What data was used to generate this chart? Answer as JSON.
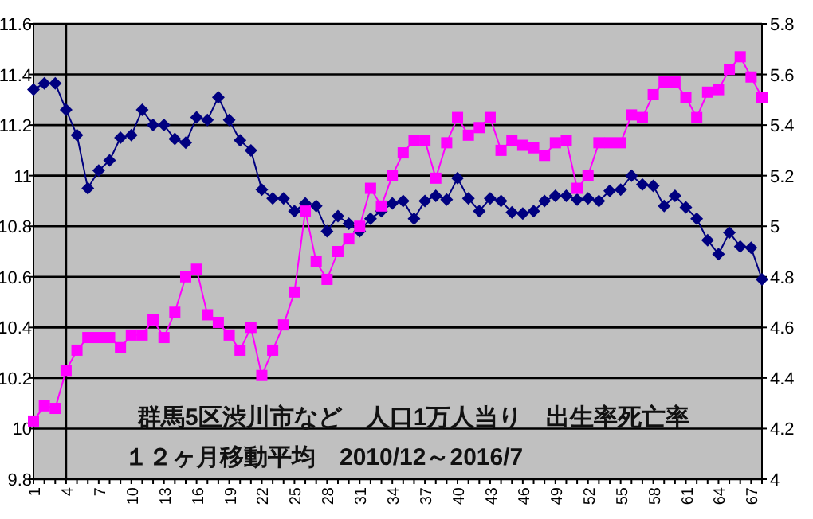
{
  "chart_data": {
    "type": "line",
    "categories": [
      "1",
      null,
      null,
      "4",
      null,
      null,
      "7",
      null,
      null,
      "10",
      null,
      null,
      "13",
      null,
      null,
      "16",
      null,
      null,
      "19",
      null,
      null,
      "22",
      null,
      null,
      "25",
      null,
      null,
      "28",
      null,
      null,
      "31",
      null,
      null,
      "34",
      null,
      null,
      "37",
      null,
      null,
      "40",
      null,
      null,
      "43",
      null,
      null,
      "46",
      null,
      null,
      "49",
      null,
      null,
      "52",
      null,
      null,
      "55",
      null,
      null,
      "58",
      null,
      null,
      "61",
      null,
      null,
      "64",
      null,
      null,
      "67",
      null
    ],
    "series": [
      {
        "color": "#000080",
        "marker": "diamond",
        "axis": "y",
        "values": [
          11.34,
          11.365,
          11.365,
          11.26,
          11.16,
          10.95,
          11.02,
          11.06,
          11.15,
          11.16,
          11.26,
          11.2,
          11.2,
          11.145,
          11.13,
          11.23,
          11.22,
          11.31,
          11.22,
          11.14,
          11.1,
          10.945,
          10.91,
          10.91,
          10.86,
          10.89,
          10.88,
          10.78,
          10.84,
          10.81,
          10.78,
          10.83,
          10.86,
          10.89,
          10.9,
          10.83,
          10.9,
          10.92,
          10.905,
          10.99,
          10.91,
          10.86,
          10.91,
          10.9,
          10.855,
          10.85,
          10.86,
          10.9,
          10.92,
          10.92,
          10.905,
          10.91,
          10.9,
          10.94,
          10.945,
          11.0,
          10.965,
          10.96,
          10.88,
          10.92,
          10.875,
          10.83,
          10.745,
          10.69,
          10.775,
          10.72,
          10.715,
          10.59
        ]
      },
      {
        "color": "#ff00ff",
        "marker": "square",
        "axis": "y2",
        "values": [
          4.23,
          4.29,
          4.28,
          4.43,
          4.51,
          4.56,
          4.56,
          4.56,
          4.52,
          4.57,
          4.57,
          4.63,
          4.56,
          4.66,
          4.8,
          4.83,
          4.65,
          4.62,
          4.57,
          4.51,
          4.6,
          4.41,
          4.51,
          4.61,
          4.74,
          5.06,
          4.86,
          4.79,
          4.9,
          4.95,
          5.0,
          5.15,
          5.08,
          5.2,
          5.29,
          5.34,
          5.34,
          5.19,
          5.33,
          5.43,
          5.36,
          5.39,
          5.43,
          5.3,
          5.34,
          5.32,
          5.31,
          5.28,
          5.33,
          5.34,
          5.15,
          5.2,
          5.33,
          5.33,
          5.33,
          5.44,
          5.43,
          5.52,
          5.57,
          5.57,
          5.51,
          5.43,
          5.53,
          5.54,
          5.62,
          5.67,
          5.59,
          5.51
        ]
      }
    ],
    "ylim": [
      9.8,
      11.6
    ],
    "yticks": [
      9.8,
      10,
      10.2,
      10.4,
      10.6,
      10.8,
      11,
      11.2,
      11.4,
      11.6
    ],
    "y2lim": [
      4,
      5.8
    ],
    "y2ticks": [
      4,
      4.2,
      4.4,
      4.6,
      4.8,
      5,
      5.2,
      5.4,
      5.6,
      5.8
    ],
    "grid": "y",
    "ref_lines": [
      {
        "axis": "x",
        "value": "4",
        "color": "#000000"
      }
    ],
    "annotations": [
      "群馬5区渋川市など　人口1万人当り　出生率死亡率",
      "１２ヶ月移動平均　2010/12～2016/7"
    ]
  }
}
